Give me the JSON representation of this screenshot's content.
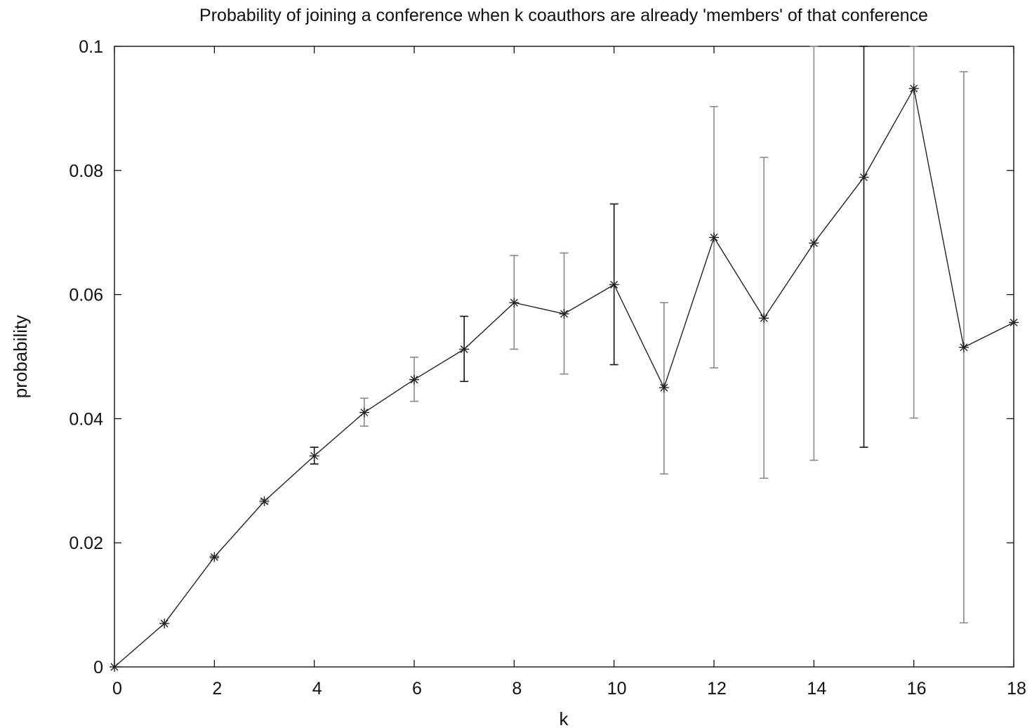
{
  "chart_data": {
    "type": "line",
    "title": "Probability of joining a conference when k coauthors are already 'members' of that conference",
    "xlabel": "k",
    "ylabel": "probability",
    "xlim": [
      0,
      18
    ],
    "ylim": [
      0,
      0.1
    ],
    "x_ticks": [
      "0",
      "2",
      "4",
      "6",
      "8",
      "10",
      "12",
      "14",
      "16",
      "18"
    ],
    "y_ticks": [
      "0",
      "0.02",
      "0.04",
      "0.06",
      "0.08",
      "0.1"
    ],
    "x_tick_values": [
      0,
      2,
      4,
      6,
      8,
      10,
      12,
      14,
      16,
      18
    ],
    "y_tick_values": [
      0,
      0.02,
      0.04,
      0.06,
      0.08,
      0.1
    ],
    "grid": false,
    "marker": "asterisk",
    "line_color": "#222222",
    "errorbar_color_light": "#8a8a8a",
    "errorbar_color_dark": "#111111",
    "series": [
      {
        "x": [
          0,
          1,
          2,
          3,
          4,
          5,
          6,
          7,
          8,
          9,
          10,
          11,
          12,
          13,
          14,
          15,
          16,
          17,
          18
        ],
        "y": [
          0.0,
          0.007,
          0.0177,
          0.0267,
          0.034,
          0.041,
          0.0463,
          0.0512,
          0.0587,
          0.0569,
          0.0616,
          0.045,
          0.0692,
          0.0562,
          0.0683,
          0.0789,
          0.0932,
          0.0515,
          0.0555
        ],
        "y_low": [
          0.0,
          0.007,
          0.0175,
          0.0264,
          0.0327,
          0.0388,
          0.0428,
          0.046,
          0.0512,
          0.0472,
          0.0487,
          0.0311,
          0.0482,
          0.0304,
          0.0333,
          0.0354,
          0.0401,
          0.0071,
          null
        ],
        "y_high": [
          0.0,
          0.007,
          0.0179,
          0.027,
          0.0354,
          0.0433,
          0.0499,
          0.0565,
          0.0663,
          0.0667,
          0.0746,
          0.0587,
          0.0903,
          0.0821,
          0.1,
          0.1,
          0.1,
          0.0959,
          null
        ],
        "errorbar_dark": [
          false,
          false,
          false,
          false,
          true,
          false,
          false,
          true,
          false,
          false,
          true,
          false,
          false,
          false,
          false,
          true,
          false,
          false,
          false
        ]
      }
    ]
  }
}
